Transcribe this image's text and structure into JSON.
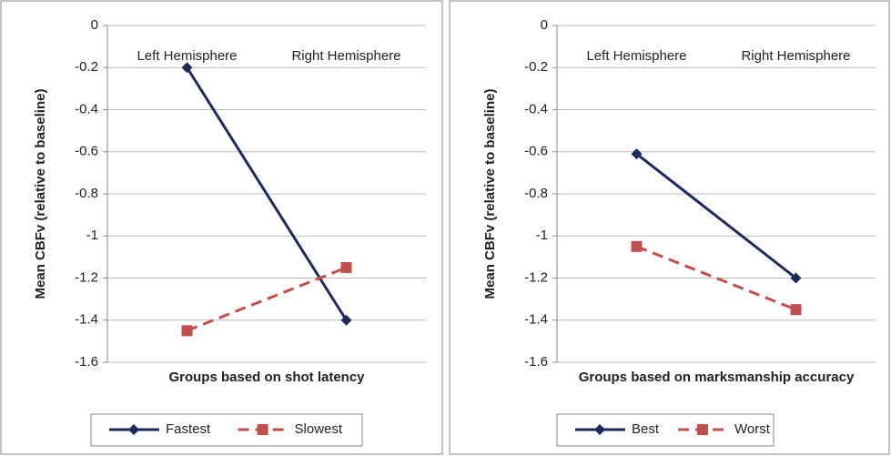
{
  "chart_data": [
    {
      "type": "line",
      "y_label": "Mean CBFv (relative to baseline)",
      "x_label": "Groups based on shot latency",
      "categories": [
        "Left Hemisphere",
        "Right Hemisphere"
      ],
      "series": [
        {
          "name": "Fastest",
          "color": "#1f2a5c",
          "values": [
            -0.2,
            -1.4
          ]
        },
        {
          "name": "Slowest",
          "color": "#c0504d",
          "values": [
            -1.45,
            -1.15
          ]
        }
      ],
      "ylim": [
        -1.6,
        0
      ],
      "yticks": [
        0,
        -0.2,
        -0.4,
        -0.6,
        -0.8,
        -1,
        -1.2,
        -1.4,
        -1.6
      ],
      "grid": true,
      "legend": "bottom"
    },
    {
      "type": "line",
      "y_label": "Mean CBFv (relative to baseline)",
      "x_label": "Groups based on marksmanship accuracy",
      "categories": [
        "Left Hemisphere",
        "Right Hemisphere"
      ],
      "series": [
        {
          "name": "Best",
          "color": "#1f2a5c",
          "values": [
            -0.61,
            -1.2
          ]
        },
        {
          "name": "Worst",
          "color": "#c0504d",
          "values": [
            -1.05,
            -1.35
          ]
        }
      ],
      "ylim": [
        -1.6,
        0
      ],
      "yticks": [
        0,
        -0.2,
        -0.4,
        -0.6,
        -0.8,
        -1,
        -1.2,
        -1.4,
        -1.6
      ],
      "grid": true,
      "legend": "bottom"
    }
  ]
}
